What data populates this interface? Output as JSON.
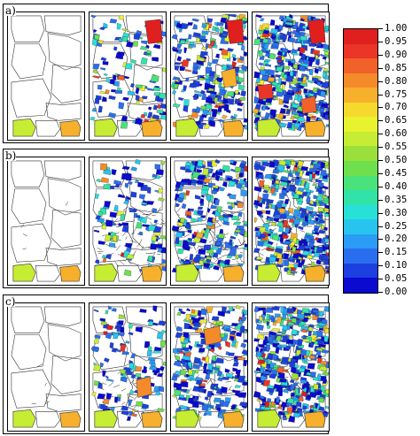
{
  "rows": [
    {
      "label": "a)",
      "panel_count": 4
    },
    {
      "label": "b)",
      "panel_count": 4
    },
    {
      "label": "c)",
      "panel_count": 4
    }
  ],
  "legend": {
    "colors": [
      "#0a0ad0",
      "#1c3fe0",
      "#2a6ef0",
      "#2b9cf5",
      "#27c4f0",
      "#27e0d8",
      "#31e3a6",
      "#4ae27a",
      "#6ee04d",
      "#9be03a",
      "#c6ec33",
      "#e9f22e",
      "#f5d92c",
      "#f6b02c",
      "#f58a2b",
      "#f2612a",
      "#ea3528",
      "#e01f1f"
    ],
    "tick_labels": [
      "1.00",
      "0.95",
      "0.90",
      "0.85",
      "0.80",
      "0.75",
      "0.70",
      "0.65",
      "0.60",
      "0.55",
      "0.50",
      "0.45",
      "0.40",
      "0.35",
      "0.30",
      "0.25",
      "0.20",
      "0.15",
      "0.10",
      "0.05",
      "0.00"
    ]
  }
}
